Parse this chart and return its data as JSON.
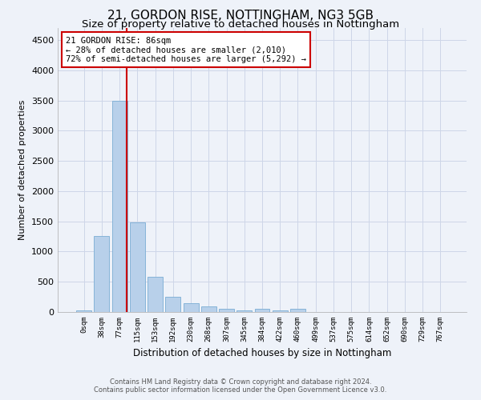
{
  "title1": "21, GORDON RISE, NOTTINGHAM, NG3 5GB",
  "title2": "Size of property relative to detached houses in Nottingham",
  "xlabel": "Distribution of detached houses by size in Nottingham",
  "ylabel": "Number of detached properties",
  "footer1": "Contains HM Land Registry data © Crown copyright and database right 2024.",
  "footer2": "Contains public sector information licensed under the Open Government Licence v3.0.",
  "bar_labels": [
    "0sqm",
    "38sqm",
    "77sqm",
    "115sqm",
    "153sqm",
    "192sqm",
    "230sqm",
    "268sqm",
    "307sqm",
    "345sqm",
    "384sqm",
    "422sqm",
    "460sqm",
    "499sqm",
    "537sqm",
    "575sqm",
    "614sqm",
    "652sqm",
    "690sqm",
    "729sqm",
    "767sqm"
  ],
  "bar_values": [
    30,
    1260,
    3500,
    1480,
    580,
    245,
    140,
    90,
    55,
    30,
    50,
    30,
    55,
    0,
    0,
    0,
    0,
    0,
    0,
    0,
    0
  ],
  "bar_color": "#b8d0ea",
  "bar_edge_color": "#7aadd4",
  "vline_color": "#cc0000",
  "vline_position": 2.42,
  "annotation_line1": "21 GORDON RISE: 86sqm",
  "annotation_line2": "← 28% of detached houses are smaller (2,010)",
  "annotation_line3": "72% of semi-detached houses are larger (5,292) →",
  "annotation_box_color": "#ffffff",
  "annotation_box_edge": "#cc0000",
  "ylim": [
    0,
    4700
  ],
  "yticks": [
    0,
    500,
    1000,
    1500,
    2000,
    2500,
    3000,
    3500,
    4000,
    4500
  ],
  "bg_color": "#eef2f9",
  "plot_bg_color": "#eef2f9",
  "grid_color": "#cdd6e8",
  "title1_fontsize": 11,
  "title2_fontsize": 9.5
}
